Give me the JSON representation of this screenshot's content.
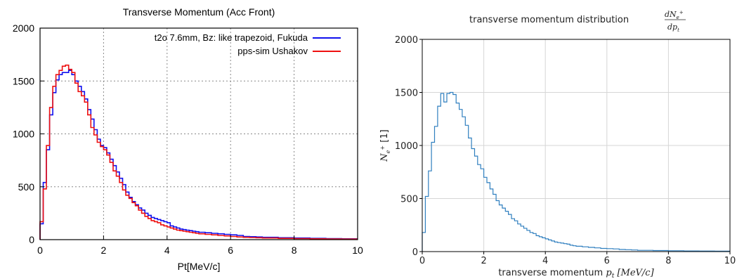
{
  "chart_data": [
    {
      "type": "line",
      "style": "step-histogram",
      "title": "Transverse Momentum (Acc Front)",
      "xlabel": "Pt[MeV/c]",
      "ylabel": "",
      "xlim": [
        0,
        10
      ],
      "ylim": [
        0,
        2000
      ],
      "xticks": [
        "0",
        "2",
        "4",
        "6",
        "8",
        "10"
      ],
      "yticks": [
        "0",
        "500",
        "1000",
        "1500",
        "2000"
      ],
      "grid": "dotted",
      "legend_position": "top-right",
      "series": [
        {
          "name": "t2o 7.6mm, Bz: like trapezoid, Fukuda",
          "color": "#1010ee",
          "x": [
            0.0,
            0.1,
            0.2,
            0.3,
            0.4,
            0.5,
            0.6,
            0.7,
            0.8,
            0.9,
            1.0,
            1.1,
            1.2,
            1.3,
            1.4,
            1.5,
            1.6,
            1.7,
            1.8,
            1.9,
            2.0,
            2.1,
            2.2,
            2.3,
            2.4,
            2.5,
            2.6,
            2.7,
            2.8,
            2.9,
            3.0,
            3.1,
            3.2,
            3.3,
            3.4,
            3.5,
            3.6,
            3.7,
            3.8,
            3.9,
            4.0,
            4.1,
            4.2,
            4.3,
            4.4,
            4.5,
            4.6,
            4.7,
            4.8,
            4.9,
            5.0,
            5.2,
            5.4,
            5.6,
            5.8,
            6.0,
            6.2,
            6.4,
            6.6,
            6.8,
            7.0,
            7.5,
            8.0,
            8.5,
            9.0,
            9.5
          ],
          "values": [
            150,
            540,
            850,
            1180,
            1390,
            1510,
            1560,
            1580,
            1580,
            1600,
            1560,
            1500,
            1450,
            1400,
            1330,
            1230,
            1140,
            1040,
            950,
            890,
            870,
            820,
            760,
            700,
            640,
            580,
            520,
            450,
            400,
            360,
            330,
            300,
            280,
            250,
            230,
            210,
            200,
            190,
            180,
            170,
            160,
            130,
            120,
            110,
            100,
            95,
            90,
            85,
            80,
            75,
            70,
            65,
            60,
            55,
            50,
            45,
            40,
            30,
            28,
            25,
            22,
            18,
            15,
            12,
            10,
            8
          ]
        },
        {
          "name": "pps-sim Ushakov",
          "color": "#ee1010",
          "x": [
            0.0,
            0.1,
            0.2,
            0.3,
            0.4,
            0.5,
            0.6,
            0.7,
            0.8,
            0.9,
            1.0,
            1.1,
            1.2,
            1.3,
            1.4,
            1.5,
            1.6,
            1.7,
            1.8,
            1.9,
            2.0,
            2.1,
            2.2,
            2.3,
            2.4,
            2.5,
            2.6,
            2.7,
            2.8,
            2.9,
            3.0,
            3.1,
            3.2,
            3.3,
            3.4,
            3.5,
            3.6,
            3.7,
            3.8,
            3.9,
            4.0,
            4.1,
            4.2,
            4.3,
            4.4,
            4.5,
            4.6,
            4.7,
            4.8,
            4.9,
            5.0,
            5.2,
            5.4,
            5.6,
            5.8,
            6.0,
            6.2,
            6.4,
            6.6,
            6.8,
            7.0,
            7.5,
            8.0,
            8.5,
            9.0,
            9.5
          ],
          "values": [
            170,
            480,
            890,
            1250,
            1450,
            1560,
            1600,
            1640,
            1650,
            1610,
            1580,
            1480,
            1400,
            1360,
            1300,
            1180,
            1060,
            990,
            920,
            880,
            850,
            800,
            730,
            650,
            600,
            540,
            470,
            420,
            390,
            350,
            320,
            280,
            250,
            220,
            200,
            180,
            170,
            160,
            140,
            130,
            120,
            110,
            100,
            90,
            85,
            80,
            75,
            70,
            65,
            60,
            55,
            50,
            45,
            40,
            35,
            30,
            25,
            22,
            20,
            18,
            15,
            12,
            10,
            8,
            6,
            5
          ]
        }
      ]
    },
    {
      "type": "line",
      "style": "step-histogram",
      "title": "transverse momentum distribution",
      "title_fraction_num": "dN",
      "title_fraction_num_sub": "e",
      "title_fraction_num_sup": "+",
      "title_fraction_den": "dp",
      "title_fraction_den_sub": "t",
      "xlabel": "transverse momentum",
      "xlabel_math": "p",
      "xlabel_math_sub": "t",
      "xlabel_unit": "[MeV/c]",
      "ylabel_math": "N",
      "ylabel_math_sub": "e",
      "ylabel_math_sup": "+",
      "ylabel_unit": "[1]",
      "xlim": [
        0,
        10
      ],
      "ylim": [
        0,
        2000
      ],
      "xticks": [
        "0",
        "2",
        "4",
        "6",
        "8",
        "10"
      ],
      "yticks": [
        "0",
        "500",
        "1000",
        "1500",
        "2000"
      ],
      "grid": "solid",
      "series": [
        {
          "color": "#2f7fbf",
          "x": [
            0.0,
            0.1,
            0.2,
            0.3,
            0.4,
            0.5,
            0.6,
            0.7,
            0.8,
            0.9,
            1.0,
            1.1,
            1.2,
            1.3,
            1.4,
            1.5,
            1.6,
            1.7,
            1.8,
            1.9,
            2.0,
            2.1,
            2.2,
            2.3,
            2.4,
            2.5,
            2.6,
            2.7,
            2.8,
            2.9,
            3.0,
            3.1,
            3.2,
            3.3,
            3.4,
            3.5,
            3.6,
            3.7,
            3.8,
            3.9,
            4.0,
            4.1,
            4.2,
            4.3,
            4.4,
            4.5,
            4.6,
            4.7,
            4.8,
            4.9,
            5.0,
            5.2,
            5.4,
            5.6,
            5.8,
            6.0,
            6.2,
            6.4,
            6.6,
            6.8,
            7.0,
            7.5,
            8.0,
            8.5,
            9.0,
            9.5
          ],
          "values": [
            180,
            520,
            760,
            1030,
            1180,
            1370,
            1490,
            1410,
            1490,
            1500,
            1480,
            1400,
            1340,
            1270,
            1190,
            1070,
            970,
            900,
            820,
            780,
            700,
            650,
            590,
            540,
            480,
            440,
            410,
            380,
            350,
            310,
            290,
            260,
            240,
            220,
            200,
            180,
            170,
            150,
            140,
            130,
            120,
            110,
            100,
            90,
            85,
            80,
            75,
            70,
            60,
            55,
            50,
            45,
            40,
            35,
            30,
            28,
            25,
            20,
            18,
            15,
            12,
            10,
            8,
            6,
            5,
            4
          ]
        }
      ]
    }
  ]
}
